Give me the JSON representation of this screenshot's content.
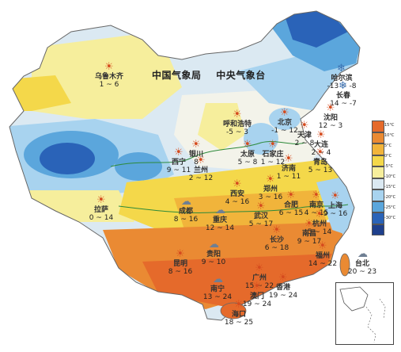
{
  "header": {
    "agency": "中国气象局",
    "center": "中央气象台"
  },
  "colors": {
    "very_cold": "#2a63b8",
    "cold": "#5ba6dc",
    "cool": "#a8d3ef",
    "mild": "#dbe9f2",
    "neutral": "#f3f3ea",
    "light_yellow": "#f6ee9c",
    "yellow": "#f4d84a",
    "warm": "#f1b43b",
    "hot": "#ea8a33",
    "very_hot": "#e56a2b"
  },
  "legend": {
    "labels": [
      "15°C",
      "10°C",
      "5°C",
      "0°C",
      "-5°C",
      "-10°C",
      "-15°C",
      "-20°C",
      "-25°C",
      "-30°C"
    ],
    "colors": [
      "#e56a2b",
      "#ea8a33",
      "#f1b43b",
      "#f4d84a",
      "#f6ee9c",
      "#dbe9f2",
      "#a8d3ef",
      "#5ba6dc",
      "#2a63b8",
      "#1e3f8c"
    ]
  },
  "cities": [
    {
      "name": "乌鲁木齐",
      "temp": "1 ~ 6",
      "icon": "sun"
    },
    {
      "name": "哈尔滨",
      "temp": "-13 ~ -8",
      "icon": "snow"
    },
    {
      "name": "长春",
      "temp": "14 ~ -7",
      "icon": "snow"
    },
    {
      "name": "沈阳",
      "temp": "12 ~ 3",
      "icon": "sun"
    },
    {
      "name": "呼和浩特",
      "temp": "-5 ~ 3",
      "icon": "sun"
    },
    {
      "name": "北京",
      "temp": "-1 ~ 12",
      "icon": "sun"
    },
    {
      "name": "天津",
      "temp": "2 ~ 8",
      "icon": "sun"
    },
    {
      "name": "大连",
      "temp": "2 ~ 4",
      "icon": "sun"
    },
    {
      "name": "银川",
      "temp": "8",
      "icon": "sun"
    },
    {
      "name": "太原",
      "temp": "5 ~ 8",
      "icon": "sun"
    },
    {
      "name": "石家庄",
      "temp": "1 ~ 12",
      "icon": "sun"
    },
    {
      "name": "济南",
      "temp": "1 ~ 11",
      "icon": "sun"
    },
    {
      "name": "青岛",
      "temp": "5 ~ 13",
      "icon": "sun"
    },
    {
      "name": "西宁",
      "temp": "9 ~ 11",
      "icon": "sun"
    },
    {
      "name": "兰州",
      "temp": "2 ~ 12",
      "icon": "sun"
    },
    {
      "name": "西安",
      "temp": "4 ~ 16",
      "icon": "sun"
    },
    {
      "name": "郑州",
      "temp": "3 ~ 16",
      "icon": "sun"
    },
    {
      "name": "拉萨",
      "temp": "0 ~ 14",
      "icon": "sun"
    },
    {
      "name": "成都",
      "temp": "8 ~ 16",
      "icon": "cloud"
    },
    {
      "name": "重庆",
      "temp": "12 ~ 14",
      "icon": "cloud"
    },
    {
      "name": "武汉",
      "temp": "5 ~ 17",
      "icon": "sun"
    },
    {
      "name": "合肥",
      "temp": "6 ~ 15",
      "icon": "sun"
    },
    {
      "name": "南京",
      "temp": "4 ~ 15",
      "icon": "sun"
    },
    {
      "name": "上海",
      "temp": "9 ~ 16",
      "icon": "sun"
    },
    {
      "name": "杭州",
      "temp": "5 ~ 14",
      "icon": "sun"
    },
    {
      "name": "长沙",
      "temp": "6 ~ 18",
      "icon": "sun"
    },
    {
      "name": "南昌",
      "temp": "9 ~ 17",
      "icon": "sun"
    },
    {
      "name": "贵阳",
      "temp": "9 ~ 10",
      "icon": "cloud"
    },
    {
      "name": "昆明",
      "temp": "8 ~ 16",
      "icon": "sun"
    },
    {
      "name": "福州",
      "temp": "14 ~ 22",
      "icon": "sun"
    },
    {
      "name": "台北",
      "temp": "20 ~ 23",
      "icon": "cloud"
    },
    {
      "name": "南宁",
      "temp": "13 ~ 24",
      "icon": "cloud"
    },
    {
      "name": "广州",
      "temp": "15 ~ 22",
      "icon": "sun"
    },
    {
      "name": "澳门",
      "temp": "19 ~ 24",
      "icon": "sun"
    },
    {
      "name": "香港",
      "temp": "19 ~ 24",
      "icon": "sun"
    },
    {
      "name": "海口",
      "temp": "18 ~ 25",
      "icon": "sun"
    }
  ]
}
